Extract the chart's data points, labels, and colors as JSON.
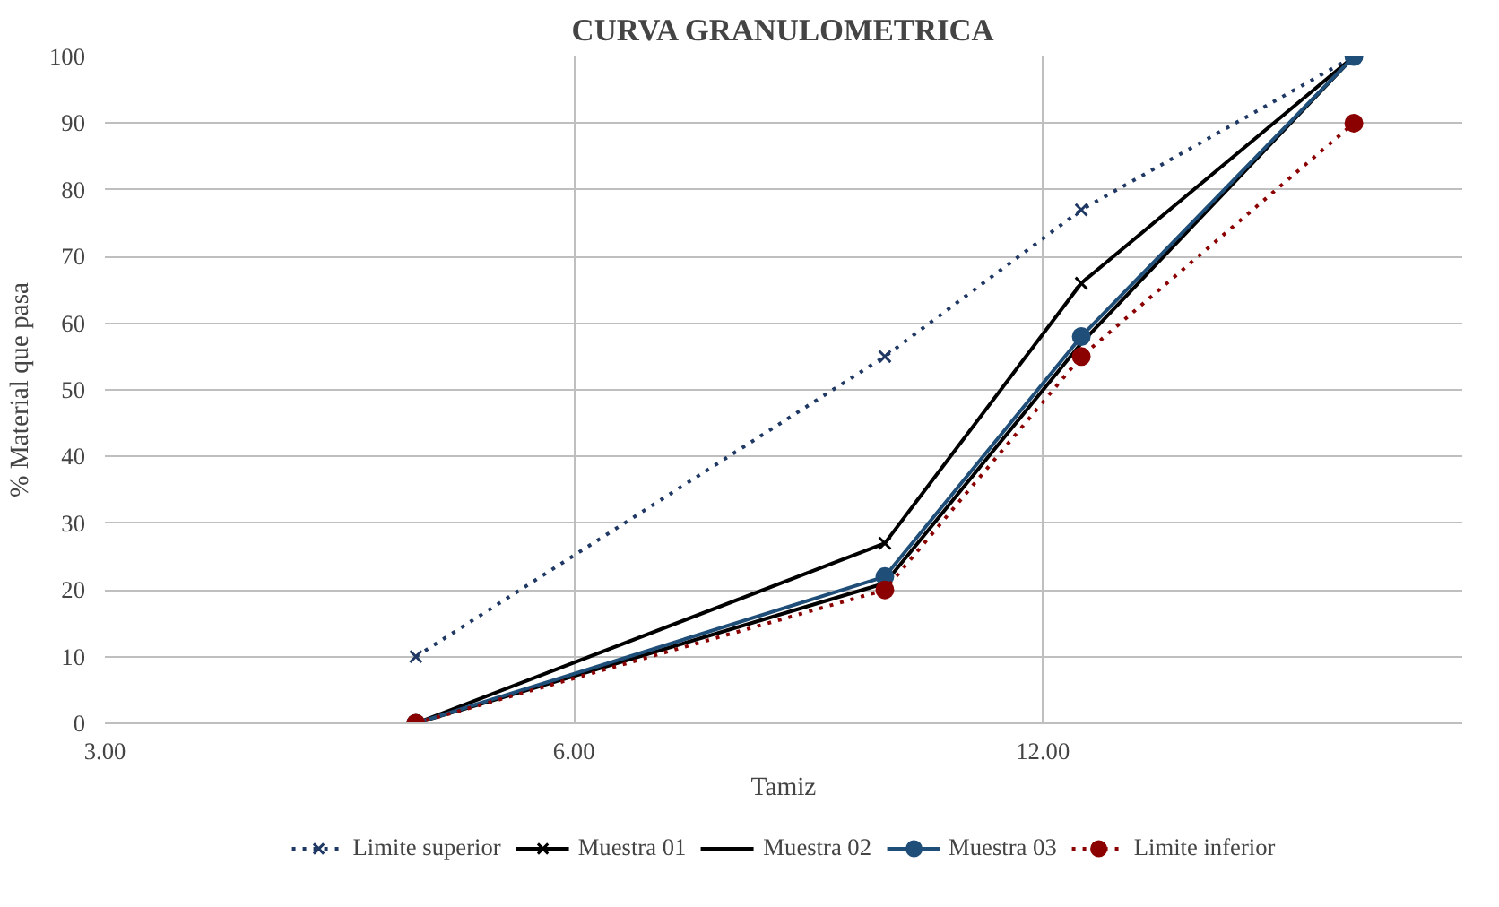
{
  "chart_data": {
    "type": "line",
    "title": "CURVA GRANULOMETRICA",
    "xlabel": "Tamiz",
    "ylabel": "% Material que pasa",
    "log": "x",
    "x": [
      4.75,
      9.5,
      12.7,
      19
    ],
    "xlim": [
      3,
      22.3
    ],
    "xticks": [
      {
        "value": 3,
        "label": "3.00"
      },
      {
        "value": 6,
        "label": "6.00"
      },
      {
        "value": 12,
        "label": "12.00"
      }
    ],
    "ylim": [
      0,
      100
    ],
    "yticks": [
      0,
      10,
      20,
      30,
      40,
      50,
      60,
      70,
      80,
      90,
      100
    ],
    "grid": true,
    "legend": "bottom",
    "series": [
      {
        "name": "Limite superior",
        "color": "#1f3864",
        "values": [
          10,
          55,
          77,
          100
        ],
        "marker": "cross",
        "line_style": "dotted"
      },
      {
        "name": "Muestra 01",
        "color": "#000000",
        "values": [
          0,
          27,
          66,
          100
        ],
        "marker": "cross",
        "line_style": "solid"
      },
      {
        "name": "Muestra 02",
        "color": "#000000",
        "values": [
          0,
          21,
          57,
          100
        ],
        "marker": "none",
        "line_style": "solid"
      },
      {
        "name": "Muestra 03",
        "color": "#1f4e79",
        "values": [
          0,
          22,
          58,
          100
        ],
        "marker": "circle",
        "line_style": "solid"
      },
      {
        "name": "Limite inferior",
        "color": "#8b0000",
        "values": [
          0,
          20,
          55,
          90
        ],
        "marker": "circle",
        "line_style": "dotted"
      }
    ]
  }
}
